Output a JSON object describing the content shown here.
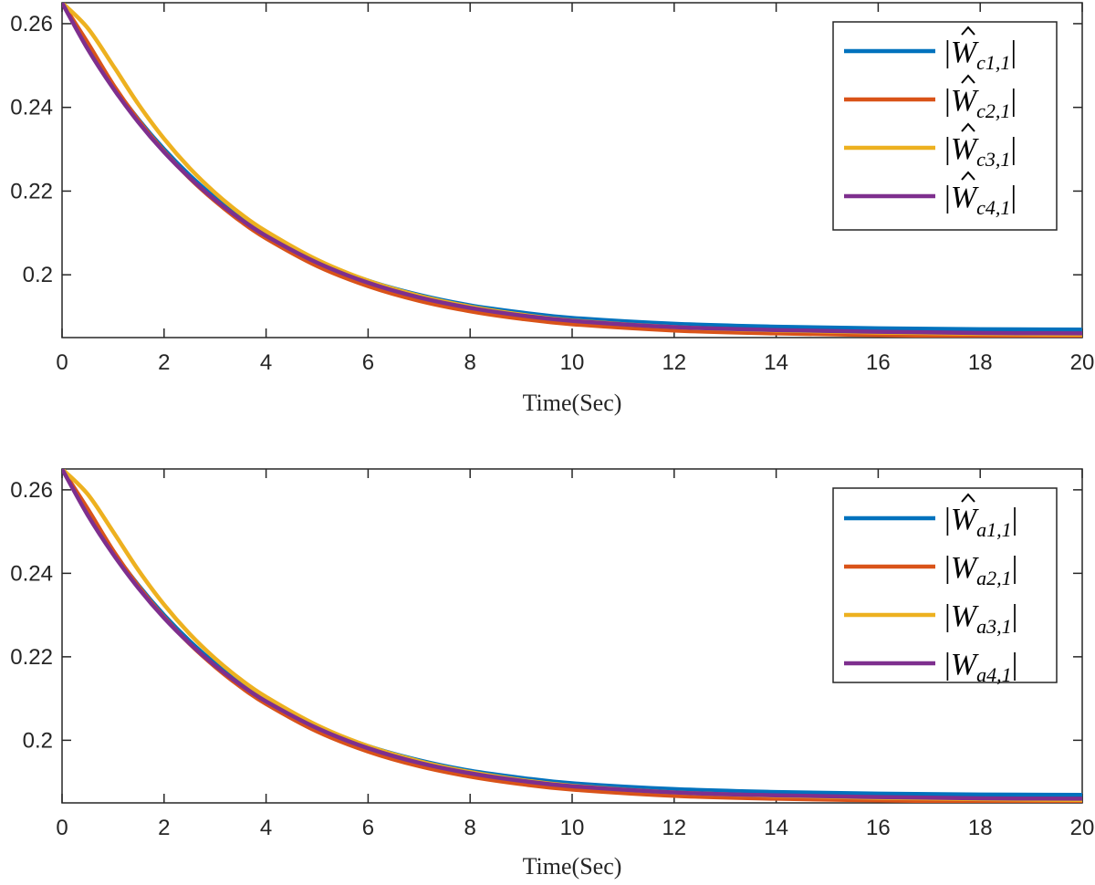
{
  "chart_data": [
    {
      "type": "line",
      "xlabel": "Time(Sec)",
      "ylabel": "",
      "xlim": [
        0,
        20
      ],
      "ylim": [
        0.185,
        0.265
      ],
      "xticks": [
        "0",
        "2",
        "4",
        "6",
        "8",
        "10",
        "12",
        "14",
        "16",
        "18",
        "20"
      ],
      "yticks": [
        "0.2",
        "0.22",
        "0.24",
        "0.26"
      ],
      "grid": false,
      "legend_position": "top-right",
      "x": [
        0,
        0.5,
        1,
        1.5,
        2,
        2.5,
        3,
        3.5,
        4,
        5,
        6,
        7,
        8,
        9,
        10,
        12,
        14,
        16,
        18,
        20
      ],
      "series": [
        {
          "name": "|Ŵc1,1|",
          "legend_base": "W",
          "legend_hat": true,
          "legend_sub": "c1,1",
          "color": "#0072BD",
          "values": [
            0.265,
            0.2545,
            0.2452,
            0.2371,
            0.23,
            0.2238,
            0.2184,
            0.2137,
            0.2097,
            0.2033,
            0.1986,
            0.1952,
            0.1927,
            0.191,
            0.1897,
            0.1883,
            0.1876,
            0.1872,
            0.187,
            0.1869
          ]
        },
        {
          "name": "|Ŵc2,1|",
          "legend_base": "W",
          "legend_hat": true,
          "legend_sub": "c2,1",
          "color": "#D95319",
          "values": [
            0.265,
            0.2555,
            0.2455,
            0.2369,
            0.2295,
            0.2231,
            0.2176,
            0.2128,
            0.2087,
            0.2021,
            0.1973,
            0.1938,
            0.1913,
            0.1895,
            0.1882,
            0.1867,
            0.186,
            0.1856,
            0.1853,
            0.1852
          ]
        },
        {
          "name": "|Ŵc3,1|",
          "legend_base": "W",
          "legend_hat": true,
          "legend_sub": "c3,1",
          "color": "#EDB120",
          "values": [
            0.265,
            0.259,
            0.25,
            0.2407,
            0.2325,
            0.2255,
            0.2196,
            0.2146,
            0.2104,
            0.2036,
            0.1986,
            0.195,
            0.1924,
            0.1905,
            0.1891,
            0.1875,
            0.1867,
            0.1862,
            0.1859,
            0.1857
          ]
        },
        {
          "name": "|Ŵc4,1|",
          "legend_base": "W",
          "legend_hat": true,
          "legend_sub": "c4,1",
          "color": "#7E2F8E",
          "values": [
            0.265,
            0.254,
            0.2446,
            0.2364,
            0.2293,
            0.2232,
            0.2179,
            0.2133,
            0.2093,
            0.2029,
            0.1981,
            0.1946,
            0.1921,
            0.1903,
            0.189,
            0.1875,
            0.1868,
            0.1864,
            0.1861,
            0.186
          ]
        }
      ]
    },
    {
      "type": "line",
      "xlabel": "Time(Sec)",
      "ylabel": "",
      "xlim": [
        0,
        20
      ],
      "ylim": [
        0.185,
        0.265
      ],
      "xticks": [
        "0",
        "2",
        "4",
        "6",
        "8",
        "10",
        "12",
        "14",
        "16",
        "18",
        "20"
      ],
      "yticks": [
        "0.2",
        "0.22",
        "0.24",
        "0.26"
      ],
      "grid": false,
      "legend_position": "right",
      "x": [
        0,
        0.5,
        1,
        1.5,
        2,
        2.5,
        3,
        3.5,
        4,
        5,
        6,
        7,
        8,
        9,
        10,
        12,
        14,
        16,
        18,
        20
      ],
      "series": [
        {
          "name": "|Ŵa1,1|",
          "legend_base": "W",
          "legend_hat": true,
          "legend_sub": "a1,1",
          "color": "#0072BD",
          "values": [
            0.265,
            0.2545,
            0.2452,
            0.2371,
            0.23,
            0.2238,
            0.2184,
            0.2137,
            0.2097,
            0.2033,
            0.1986,
            0.1952,
            0.1927,
            0.191,
            0.1897,
            0.1883,
            0.1876,
            0.1872,
            0.187,
            0.1869
          ]
        },
        {
          "name": "|Wa2,1|",
          "legend_base": "W",
          "legend_hat": false,
          "legend_sub": "a2,1",
          "color": "#D95319",
          "values": [
            0.265,
            0.2555,
            0.2455,
            0.2369,
            0.2295,
            0.2231,
            0.2176,
            0.2128,
            0.2087,
            0.2021,
            0.1973,
            0.1938,
            0.1913,
            0.1895,
            0.1882,
            0.1867,
            0.186,
            0.1856,
            0.1853,
            0.1852
          ]
        },
        {
          "name": "|Wa3,1|",
          "legend_base": "W",
          "legend_hat": false,
          "legend_sub": "a3,1",
          "color": "#EDB120",
          "values": [
            0.265,
            0.259,
            0.25,
            0.2407,
            0.2325,
            0.2255,
            0.2196,
            0.2146,
            0.2104,
            0.2036,
            0.1986,
            0.195,
            0.1924,
            0.1905,
            0.1891,
            0.1875,
            0.1867,
            0.1862,
            0.1859,
            0.1857
          ]
        },
        {
          "name": "|Wa4,1|",
          "legend_base": "W",
          "legend_hat": false,
          "legend_sub": "a4,1",
          "color": "#7E2F8E",
          "values": [
            0.265,
            0.254,
            0.2446,
            0.2364,
            0.2293,
            0.2232,
            0.2179,
            0.2133,
            0.2093,
            0.2029,
            0.1981,
            0.1946,
            0.1921,
            0.1903,
            0.189,
            0.1875,
            0.1868,
            0.1864,
            0.1861,
            0.186
          ]
        }
      ]
    }
  ]
}
